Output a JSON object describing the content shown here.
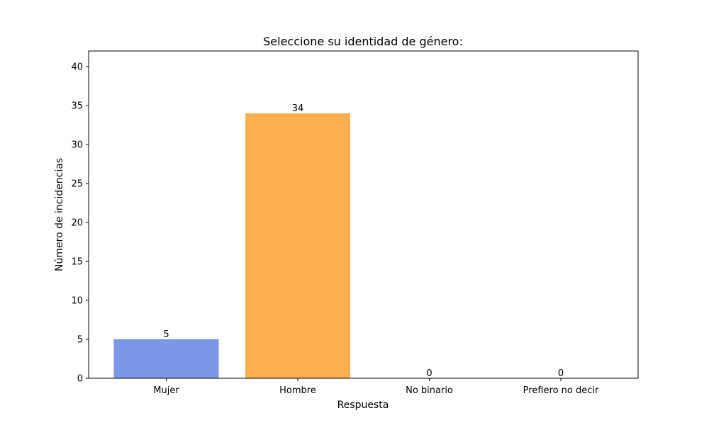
{
  "chart_data": {
    "type": "bar",
    "title": "Seleccione su identidad de género:",
    "xlabel": "Respuesta",
    "ylabel": "Número de incidencias",
    "categories": [
      "Mujer",
      "Hombre",
      "No binario",
      "Prefiero no decir"
    ],
    "values": [
      5,
      34,
      0,
      0
    ],
    "colors": [
      "#7b97e8",
      "#fdae4e",
      "#7bc97b",
      "#e87b7b"
    ],
    "ylim": [
      0,
      42
    ],
    "yticks": [
      0,
      5,
      10,
      15,
      20,
      25,
      30,
      35,
      40
    ],
    "grid": false,
    "legend": "none"
  }
}
